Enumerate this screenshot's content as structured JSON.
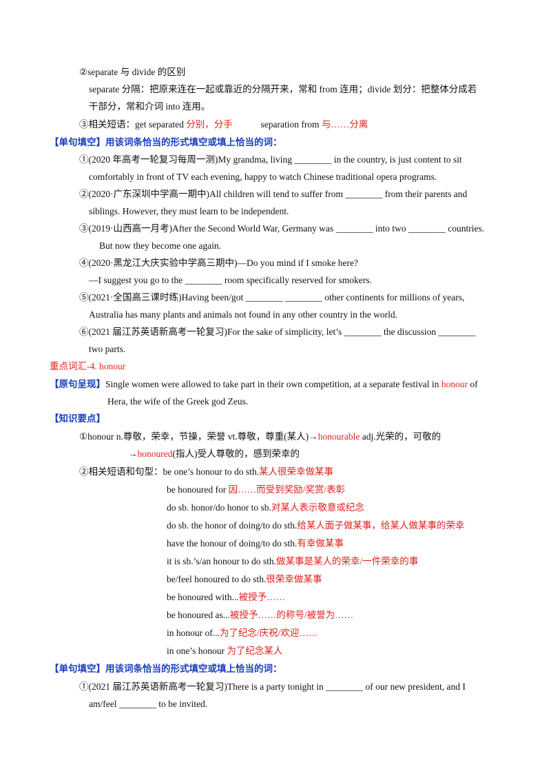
{
  "block1": {
    "l1": "②separate 与 divide 的区别",
    "l2": "separate 分隔：把原来连在一起或靠近的分隔开来，常和 from 连用；divide  划分：把整体分成若",
    "l3": "干部分，常和介词 into 连用。",
    "l4_a": "③相关短语：get separated ",
    "l4_b": "分别，分手",
    "l4_c": "separation from ",
    "l4_d": "与……分离"
  },
  "exercise1": {
    "header": "【单句填空】用该词条恰当的形式填空或填上恰当的词：",
    "q1a": "①(2020 年高考一轮复习每周一测)My grandma, living ________ in the country, is just content to sit",
    "q1b": "comfortably in front of TV each evening, happy to watch Chinese traditional opera programs.",
    "q2a": "②(2020·广东深圳中学高一期中)All children will tend to suffer from ________ from their parents and",
    "q2b": "siblings. However, they must learn to be independent.",
    "q3a": "③(2019·山西高一月考)After the Second World War, Germany was ________ into two ________ countries.",
    "q3b": "But now they become one again.",
    "q4a": "④(2020·黑龙江大庆实验中学高三期中)—Do you mind if I smoke here?",
    "q4b": "—I suggest you go to the ________ room specifically reserved for smokers.",
    "q5a": "⑤(2021·全国高三课时练)Having been/got  ________ ________  other continents for millions of years,",
    "q5b": "Australia has many plants and animals not  found in any other country in the world.",
    "q6a": "⑥(2021 届江苏英语新高考一轮复习)For the sake of simplicity, let’s ________  the discussion  ________",
    "q6b": "two parts."
  },
  "vocab": {
    "title": "重点词汇-4. honour",
    "orig_label": "【原句呈现】",
    "orig_a": "Single women were allowed to take part in their own competition, at a separate festival in ",
    "orig_word": "honour",
    "orig_b": " of",
    "orig_c": "Hera, the wife of the Greek god Zeus.",
    "key_label": "【知识要点】",
    "k1_a": "①honour n.尊敬，荣幸，节操，荣誉 vt.尊敬，尊重(某人)→",
    "k1_b": "honourable",
    "k1_c": "  adj.光荣的，可敬的",
    "k2_a": "→",
    "k2_b": "honoured",
    "k2_c": "(指人)受人尊敬的，感到荣幸的",
    "k3_a": "②相关短语和句型：be one’s honour to do sth.",
    "k3_b": "某人很荣幸做某事",
    "phrases": [
      {
        "en": "be  honoured for ",
        "zh": "因……而受到奖励/奖赏/表彰"
      },
      {
        "en": "do sb. honor/do honor to sb.",
        "zh": "对某人表示敬意或纪念"
      },
      {
        "en": "do sb. the honor of doing/to do sth.",
        "zh": "给某人面子做某事，给某人做某事的荣幸"
      },
      {
        "en": "have the honour of doing/to do sth.",
        "zh": "有幸做某事"
      },
      {
        "en": "it is sb.’s/an honour to do sth.",
        "zh": "做某事是某人的荣幸/一件荣幸的事"
      },
      {
        "en": "be/feel honoured to do sth.",
        "zh": "很荣幸做某事"
      },
      {
        "en": "be honoured with...",
        "zh": "被授予……"
      },
      {
        "en": "be honoured as...",
        "zh": "被授予……的称号/被誉为……"
      },
      {
        "en": "in honour of...",
        "zh": "为了纪念/庆祝/欢迎……"
      },
      {
        "en": "in one’s honour ",
        "zh": "为了纪念某人"
      }
    ]
  },
  "exercise2": {
    "header": "【单句填空】用该词条恰当的形式填空或填上恰当的词：",
    "q1a": "①(2021 届江苏英语新高考一轮复习)There is a party tonight in ________ of our new president, and I",
    "q1b": "am/feel  ________ to be invited."
  }
}
